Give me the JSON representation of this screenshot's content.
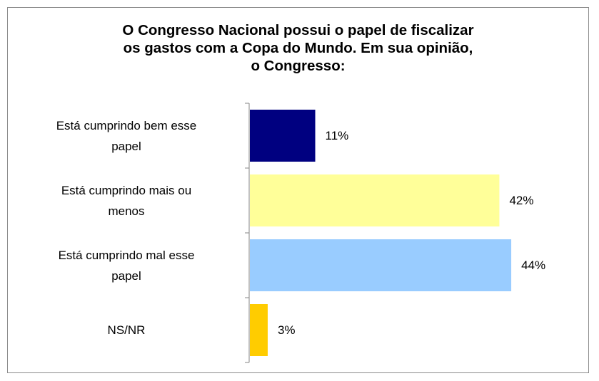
{
  "chart_data": {
    "type": "bar",
    "orientation": "horizontal",
    "title_lines": [
      "O Congresso Nacional possui o papel de fiscalizar",
      "os gastos com a Copa do Mundo. Em sua opinião,",
      "o Congresso:"
    ],
    "categories": [
      [
        "Está cumprindo bem esse",
        "papel"
      ],
      [
        "Está cumprindo mais ou",
        "menos"
      ],
      [
        "Está cumprindo mal esse",
        "papel"
      ],
      [
        "NS/NR"
      ]
    ],
    "values": [
      11,
      42,
      44,
      3
    ],
    "value_labels": [
      "11%",
      "42%",
      "44%",
      "3%"
    ],
    "colors": [
      "#000080",
      "#ffff99",
      "#99ccff",
      "#ffcc00"
    ],
    "xlim": [
      0,
      50
    ],
    "grid": false,
    "legend": "none"
  }
}
